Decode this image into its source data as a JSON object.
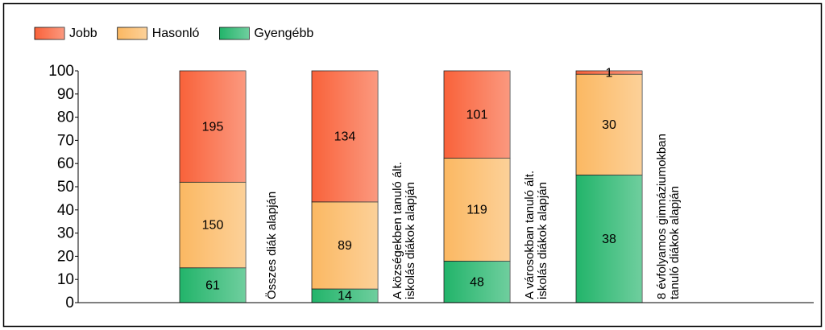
{
  "chart_data": {
    "type": "bar",
    "stacking": "percent",
    "categories": [
      "Összes diák alapján",
      "A községekben tanuló ált.\niskolás diákok alapján",
      "A városokban tanuló ált.\niskolás diákok alapján",
      "8 évfolyamos gimnáziumokban\ntanuló diákok alapján"
    ],
    "series": [
      {
        "name": "Jobb",
        "color": "#f9623a",
        "values": [
          195,
          134,
          101,
          1
        ]
      },
      {
        "name": "Hasonló",
        "color": "#fbb862",
        "values": [
          150,
          89,
          119,
          30
        ]
      },
      {
        "name": "Gyengébb",
        "color": "#22b46a",
        "values": [
          61,
          14,
          48,
          38
        ]
      }
    ],
    "ylim": [
      0,
      100
    ],
    "yticks": [
      0,
      10,
      20,
      30,
      40,
      50,
      60,
      70,
      80,
      90,
      100
    ],
    "legend": "top-left",
    "grid": false
  }
}
